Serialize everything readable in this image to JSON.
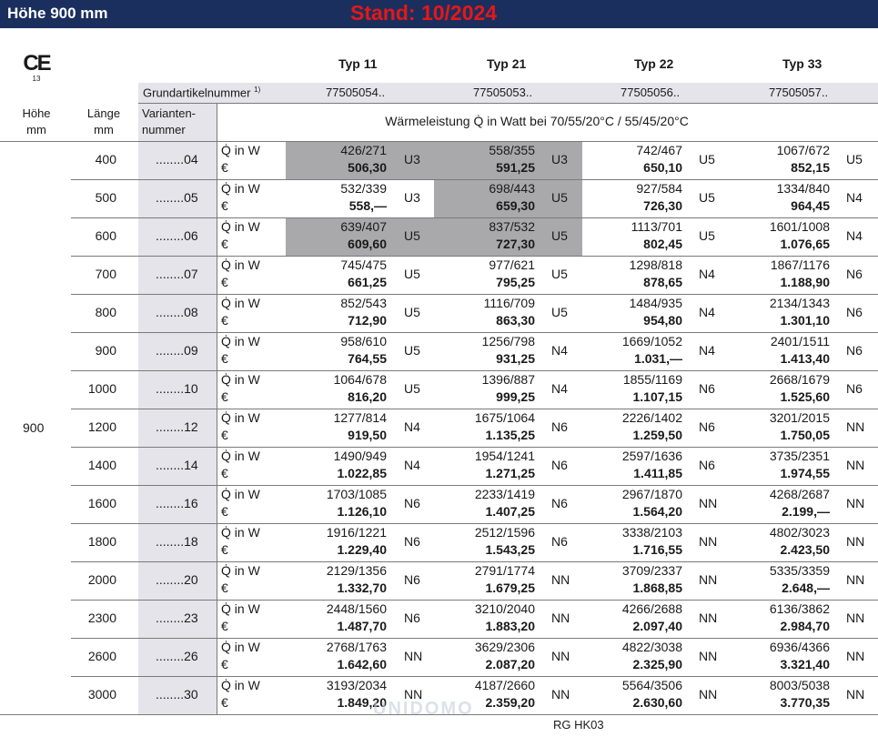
{
  "header": {
    "title": "Höhe 900 mm",
    "stand": "Stand: 10/2024"
  },
  "ce_mark": {
    "symbol": "CE",
    "number": "13"
  },
  "types": [
    "Typ 11",
    "Typ 21",
    "Typ 22",
    "Typ 33"
  ],
  "grundartikel": {
    "label": "Grundartikelnummer",
    "footnote": "1)",
    "numbers": [
      "77505054..",
      "77505053..",
      "77505056..",
      "77505057.."
    ]
  },
  "columns": {
    "hoehe": [
      "Höhe",
      "mm"
    ],
    "laenge": [
      "Länge",
      "mm"
    ],
    "variante": [
      "Varianten-",
      "nummer"
    ]
  },
  "waermeleistung": "Wärmeleistung Q̇ in Watt bei 70/55/20°C / 55/45/20°C",
  "hoehe_value": "900",
  "row_labels": {
    "q": "Q̇ in W",
    "eur": "€"
  },
  "rows": [
    {
      "len": "400",
      "var": "........04",
      "c": [
        {
          "w": "426/271",
          "p": "506,30",
          "g": "U3"
        },
        {
          "w": "558/355",
          "p": "591,25",
          "g": "U3"
        },
        {
          "w": "742/467",
          "p": "650,10",
          "g": "U5"
        },
        {
          "w": "1067/672",
          "p": "852,15",
          "g": "U5"
        }
      ]
    },
    {
      "len": "500",
      "var": "........05",
      "c": [
        {
          "w": "532/339",
          "p": "558,—",
          "g": "U3"
        },
        {
          "w": "698/443",
          "p": "659,30",
          "g": "U5"
        },
        {
          "w": "927/584",
          "p": "726,30",
          "g": "U5"
        },
        {
          "w": "1334/840",
          "p": "964,45",
          "g": "N4"
        }
      ]
    },
    {
      "len": "600",
      "var": "........06",
      "c": [
        {
          "w": "639/407",
          "p": "609,60",
          "g": "U5"
        },
        {
          "w": "837/532",
          "p": "727,30",
          "g": "U5"
        },
        {
          "w": "1113/701",
          "p": "802,45",
          "g": "U5"
        },
        {
          "w": "1601/1008",
          "p": "1.076,65",
          "g": "N4"
        }
      ]
    },
    {
      "len": "700",
      "var": "........07",
      "c": [
        {
          "w": "745/475",
          "p": "661,25",
          "g": "U5"
        },
        {
          "w": "977/621",
          "p": "795,25",
          "g": "U5"
        },
        {
          "w": "1298/818",
          "p": "878,65",
          "g": "N4"
        },
        {
          "w": "1867/1176",
          "p": "1.188,90",
          "g": "N6"
        }
      ]
    },
    {
      "len": "800",
      "var": "........08",
      "c": [
        {
          "w": "852/543",
          "p": "712,90",
          "g": "U5"
        },
        {
          "w": "1116/709",
          "p": "863,30",
          "g": "U5"
        },
        {
          "w": "1484/935",
          "p": "954,80",
          "g": "N4"
        },
        {
          "w": "2134/1343",
          "p": "1.301,10",
          "g": "N6"
        }
      ]
    },
    {
      "len": "900",
      "var": "........09",
      "c": [
        {
          "w": "958/610",
          "p": "764,55",
          "g": "U5"
        },
        {
          "w": "1256/798",
          "p": "931,25",
          "g": "N4"
        },
        {
          "w": "1669/1052",
          "p": "1.031,—",
          "g": "N4"
        },
        {
          "w": "2401/1511",
          "p": "1.413,40",
          "g": "N6"
        }
      ]
    },
    {
      "len": "1000",
      "var": "........10",
      "c": [
        {
          "w": "1064/678",
          "p": "816,20",
          "g": "U5"
        },
        {
          "w": "1396/887",
          "p": "999,25",
          "g": "N4"
        },
        {
          "w": "1855/1169",
          "p": "1.107,15",
          "g": "N6"
        },
        {
          "w": "2668/1679",
          "p": "1.525,60",
          "g": "N6"
        }
      ]
    },
    {
      "len": "1200",
      "var": "........12",
      "c": [
        {
          "w": "1277/814",
          "p": "919,50",
          "g": "N4"
        },
        {
          "w": "1675/1064",
          "p": "1.135,25",
          "g": "N6"
        },
        {
          "w": "2226/1402",
          "p": "1.259,50",
          "g": "N6"
        },
        {
          "w": "3201/2015",
          "p": "1.750,05",
          "g": "NN"
        }
      ]
    },
    {
      "len": "1400",
      "var": "........14",
      "c": [
        {
          "w": "1490/949",
          "p": "1.022,85",
          "g": "N4"
        },
        {
          "w": "1954/1241",
          "p": "1.271,25",
          "g": "N6"
        },
        {
          "w": "2597/1636",
          "p": "1.411,85",
          "g": "N6"
        },
        {
          "w": "3735/2351",
          "p": "1.974,55",
          "g": "NN"
        }
      ]
    },
    {
      "len": "1600",
      "var": "........16",
      "c": [
        {
          "w": "1703/1085",
          "p": "1.126,10",
          "g": "N6"
        },
        {
          "w": "2233/1419",
          "p": "1.407,25",
          "g": "N6"
        },
        {
          "w": "2967/1870",
          "p": "1.564,20",
          "g": "NN"
        },
        {
          "w": "4268/2687",
          "p": "2.199,—",
          "g": "NN"
        }
      ]
    },
    {
      "len": "1800",
      "var": "........18",
      "c": [
        {
          "w": "1916/1221",
          "p": "1.229,40",
          "g": "N6"
        },
        {
          "w": "2512/1596",
          "p": "1.543,25",
          "g": "N6"
        },
        {
          "w": "3338/2103",
          "p": "1.716,55",
          "g": "NN"
        },
        {
          "w": "4802/3023",
          "p": "2.423,50",
          "g": "NN"
        }
      ]
    },
    {
      "len": "2000",
      "var": "........20",
      "c": [
        {
          "w": "2129/1356",
          "p": "1.332,70",
          "g": "N6"
        },
        {
          "w": "2791/1774",
          "p": "1.679,25",
          "g": "NN"
        },
        {
          "w": "3709/2337",
          "p": "1.868,85",
          "g": "NN"
        },
        {
          "w": "5335/3359",
          "p": "2.648,—",
          "g": "NN"
        }
      ]
    },
    {
      "len": "2300",
      "var": "........23",
      "c": [
        {
          "w": "2448/1560",
          "p": "1.487,70",
          "g": "N6"
        },
        {
          "w": "3210/2040",
          "p": "1.883,20",
          "g": "NN"
        },
        {
          "w": "4266/2688",
          "p": "2.097,40",
          "g": "NN"
        },
        {
          "w": "6136/3862",
          "p": "2.984,70",
          "g": "NN"
        }
      ]
    },
    {
      "len": "2600",
      "var": "........26",
      "c": [
        {
          "w": "2768/1763",
          "p": "1.642,60",
          "g": "NN"
        },
        {
          "w": "3629/2306",
          "p": "2.087,20",
          "g": "NN"
        },
        {
          "w": "4822/3038",
          "p": "2.325,90",
          "g": "NN"
        },
        {
          "w": "6936/4366",
          "p": "3.321,40",
          "g": "NN"
        }
      ]
    },
    {
      "len": "3000",
      "var": "........30",
      "c": [
        {
          "w": "3193/2034",
          "p": "1.849,20",
          "g": "NN"
        },
        {
          "w": "4187/2660",
          "p": "2.359,20",
          "g": "NN"
        },
        {
          "w": "5564/3506",
          "p": "2.630,60",
          "g": "NN"
        },
        {
          "w": "8003/5038",
          "p": "3.770,35",
          "g": "NN"
        }
      ]
    }
  ],
  "shaded_cells": [
    [
      0,
      0
    ],
    [
      0,
      1
    ],
    [
      1,
      1
    ],
    [
      2,
      0
    ],
    [
      2,
      1
    ]
  ],
  "footer": "RG HK03",
  "watermark": "UNIDOMO"
}
